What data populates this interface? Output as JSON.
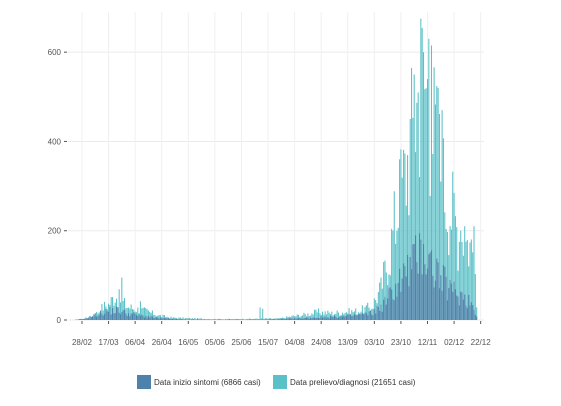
{
  "chart_data": {
    "type": "bar",
    "stacked": false,
    "overlay": true,
    "grid": true,
    "legend_position": "bottom",
    "ylim": [
      0,
      690
    ],
    "y_ticks": [
      0,
      200,
      400,
      600
    ],
    "x_tick_labels": [
      "28/02",
      "17/03",
      "06/04",
      "26/04",
      "16/05",
      "05/06",
      "25/06",
      "15/07",
      "04/08",
      "24/08",
      "13/09",
      "03/10",
      "23/10",
      "12/11",
      "02/12",
      "22/12"
    ],
    "x_start_day": "2020-02-22",
    "x_end_day": "2020-12-22",
    "series": [
      {
        "name": "Data prelievo/diagnosi (21651 casi)",
        "color": "#5bc1c8",
        "anchors": [
          [
            "2020-02-22",
            0
          ],
          [
            "2020-02-28",
            2
          ],
          [
            "2020-03-05",
            5
          ],
          [
            "2020-03-10",
            15
          ],
          [
            "2020-03-15",
            30
          ],
          [
            "2020-03-19",
            35
          ],
          [
            "2020-03-24",
            55
          ],
          [
            "2020-03-28",
            45
          ],
          [
            "2020-04-02",
            30
          ],
          [
            "2020-04-08",
            25
          ],
          [
            "2020-04-16",
            20
          ],
          [
            "2020-04-26",
            10
          ],
          [
            "2020-05-06",
            5
          ],
          [
            "2020-05-16",
            4
          ],
          [
            "2020-06-05",
            2
          ],
          [
            "2020-06-25",
            2
          ],
          [
            "2020-07-15",
            3
          ],
          [
            "2020-07-25",
            3
          ],
          [
            "2020-08-04",
            8
          ],
          [
            "2020-08-14",
            12
          ],
          [
            "2020-08-24",
            18
          ],
          [
            "2020-09-03",
            15
          ],
          [
            "2020-09-13",
            18
          ],
          [
            "2020-09-23",
            20
          ],
          [
            "2020-10-03",
            30
          ],
          [
            "2020-10-10",
            70
          ],
          [
            "2020-10-17",
            160
          ],
          [
            "2020-10-23",
            260
          ],
          [
            "2020-10-29",
            340
          ],
          [
            "2020-11-03",
            430
          ],
          [
            "2020-11-08",
            520
          ],
          [
            "2020-11-13",
            530
          ],
          [
            "2020-11-18",
            440
          ],
          [
            "2020-11-23",
            360
          ],
          [
            "2020-11-28",
            280
          ],
          [
            "2020-12-03",
            240
          ],
          [
            "2020-12-08",
            190
          ],
          [
            "2020-12-13",
            180
          ],
          [
            "2020-12-18",
            160
          ],
          [
            "2020-12-21",
            30
          ],
          [
            "2020-12-22",
            0
          ]
        ],
        "spikes": [
          [
            "2020-03-29",
            95
          ],
          [
            "2020-04-12",
            42
          ],
          [
            "2020-07-11",
            28
          ],
          [
            "2020-07-13",
            25
          ],
          [
            "2020-10-24",
            360
          ],
          [
            "2020-11-04",
            550
          ],
          [
            "2020-11-09",
            675
          ],
          [
            "2020-11-11",
            600
          ],
          [
            "2020-11-15",
            630
          ],
          [
            "2020-11-17",
            615
          ],
          [
            "2020-11-22",
            520
          ],
          [
            "2020-11-25",
            470
          ],
          [
            "2020-12-09",
            200
          ],
          [
            "2020-12-12",
            210
          ],
          [
            "2020-12-19",
            210
          ]
        ]
      },
      {
        "name": "Data inizio sintomi (6866 casi)",
        "color": "#4f82aa",
        "anchors": [
          [
            "2020-02-22",
            0
          ],
          [
            "2020-03-01",
            3
          ],
          [
            "2020-03-10",
            12
          ],
          [
            "2020-03-18",
            20
          ],
          [
            "2020-03-25",
            22
          ],
          [
            "2020-04-02",
            15
          ],
          [
            "2020-04-12",
            10
          ],
          [
            "2020-04-26",
            4
          ],
          [
            "2020-05-16",
            1
          ],
          [
            "2020-06-25",
            1
          ],
          [
            "2020-07-15",
            1
          ],
          [
            "2020-08-04",
            3
          ],
          [
            "2020-08-24",
            6
          ],
          [
            "2020-09-13",
            8
          ],
          [
            "2020-10-03",
            15
          ],
          [
            "2020-10-12",
            35
          ],
          [
            "2020-10-20",
            70
          ],
          [
            "2020-10-27",
            100
          ],
          [
            "2020-11-03",
            125
          ],
          [
            "2020-11-08",
            150
          ],
          [
            "2020-11-13",
            140
          ],
          [
            "2020-11-18",
            120
          ],
          [
            "2020-11-25",
            90
          ],
          [
            "2020-12-02",
            65
          ],
          [
            "2020-12-10",
            55
          ],
          [
            "2020-12-17",
            40
          ],
          [
            "2020-12-21",
            10
          ],
          [
            "2020-12-22",
            0
          ]
        ],
        "spikes": [
          [
            "2020-11-09",
            180
          ],
          [
            "2020-11-11",
            170
          ]
        ]
      }
    ],
    "legend_order": [
      1,
      0
    ]
  }
}
